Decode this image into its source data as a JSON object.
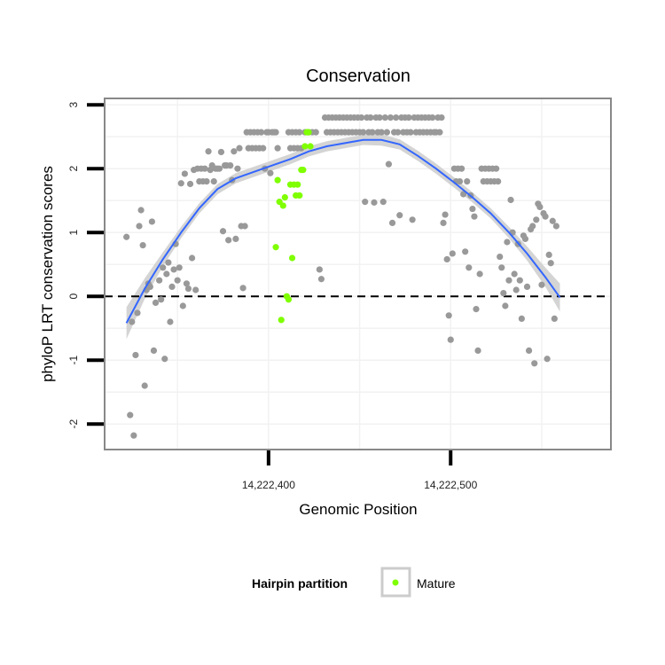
{
  "chart_data": {
    "type": "scatter",
    "title": "Conservation",
    "xlabel": "Genomic Position",
    "ylabel": "phyloP LRT conservation scores",
    "xlim": [
      14222310,
      14222588
    ],
    "ylim": [
      -2.4,
      3.1
    ],
    "x_ticks": [
      {
        "value": 14222400,
        "label": "14,222,400"
      },
      {
        "value": 14222500,
        "label": "14,222,500"
      }
    ],
    "y_ticks": [
      {
        "value": -2,
        "label": "-2"
      },
      {
        "value": -1,
        "label": "-1"
      },
      {
        "value": 0,
        "label": "0"
      },
      {
        "value": 1,
        "label": "1"
      },
      {
        "value": 2,
        "label": "2"
      },
      {
        "value": 3,
        "label": "3"
      }
    ],
    "reference_line": {
      "y": 0,
      "style": "dashed",
      "color": "#000000"
    },
    "grid": true,
    "legend": {
      "title": "Hairpin partition",
      "position": "bottom",
      "entries": [
        {
          "label": "Mature",
          "color": "#7fff00"
        }
      ]
    },
    "colors": {
      "other_points": "#999999",
      "mature_points": "#7fff00",
      "smooth_line": "#3366ff",
      "confidence_band": "#cccccc",
      "panel_border": "#888888",
      "grid": "#f2f2f2"
    },
    "series": [
      {
        "name": "",
        "color": "#999999",
        "points": [
          [
            14222322,
            0.93
          ],
          [
            14222324,
            -1.86
          ],
          [
            14222325,
            -0.4
          ],
          [
            14222326,
            -2.18
          ],
          [
            14222327,
            -0.92
          ],
          [
            14222328,
            -0.26
          ],
          [
            14222329,
            1.1
          ],
          [
            14222330,
            1.35
          ],
          [
            14222331,
            0.8
          ],
          [
            14222332,
            -1.4
          ],
          [
            14222333,
            0.1
          ],
          [
            14222334,
            0.2
          ],
          [
            14222335,
            0.15
          ],
          [
            14222336,
            1.17
          ],
          [
            14222337,
            -0.85
          ],
          [
            14222338,
            -0.1
          ],
          [
            14222340,
            0.25
          ],
          [
            14222341,
            -0.05
          ],
          [
            14222342,
            0.45
          ],
          [
            14222343,
            -0.98
          ],
          [
            14222344,
            0.35
          ],
          [
            14222345,
            0.53
          ],
          [
            14222346,
            -0.4
          ],
          [
            14222347,
            0.15
          ],
          [
            14222348,
            0.42
          ],
          [
            14222349,
            0.82
          ],
          [
            14222350,
            0.25
          ],
          [
            14222351,
            0.45
          ],
          [
            14222352,
            1.77
          ],
          [
            14222353,
            -0.15
          ],
          [
            14222354,
            1.92
          ],
          [
            14222355,
            0.2
          ],
          [
            14222356,
            0.12
          ],
          [
            14222357,
            1.76
          ],
          [
            14222358,
            0.6
          ],
          [
            14222359,
            1.98
          ],
          [
            14222360,
            0.1
          ],
          [
            14222361,
            2.0
          ],
          [
            14222362,
            1.8
          ],
          [
            14222363,
            2.0
          ],
          [
            14222364,
            1.8
          ],
          [
            14222365,
            2.0
          ],
          [
            14222366,
            1.8
          ],
          [
            14222367,
            2.27
          ],
          [
            14222368,
            1.98
          ],
          [
            14222369,
            2.05
          ],
          [
            14222370,
            1.8
          ],
          [
            14222371,
            2.0
          ],
          [
            14222372,
            2.0
          ],
          [
            14222373,
            2.0
          ],
          [
            14222374,
            2.26
          ],
          [
            14222375,
            1.02
          ],
          [
            14222376,
            2.05
          ],
          [
            14222377,
            2.05
          ],
          [
            14222378,
            0.88
          ],
          [
            14222379,
            2.05
          ],
          [
            14222380,
            1.82
          ],
          [
            14222381,
            2.27
          ],
          [
            14222382,
            0.9
          ],
          [
            14222383,
            2.0
          ],
          [
            14222384,
            2.32
          ],
          [
            14222385,
            1.1
          ],
          [
            14222386,
            0.13
          ],
          [
            14222387,
            1.1
          ],
          [
            14222388,
            2.57
          ],
          [
            14222389,
            2.32
          ],
          [
            14222390,
            2.57
          ],
          [
            14222391,
            2.32
          ],
          [
            14222392,
            2.57
          ],
          [
            14222393,
            2.32
          ],
          [
            14222394,
            2.57
          ],
          [
            14222395,
            2.32
          ],
          [
            14222396,
            2.57
          ],
          [
            14222397,
            2.32
          ],
          [
            14222398,
            2.0
          ],
          [
            14222399,
            2.57
          ],
          [
            14222400,
            2.57
          ],
          [
            14222401,
            1.93
          ],
          [
            14222402,
            2.57
          ],
          [
            14222403,
            2.57
          ],
          [
            14222404,
            2.57
          ],
          [
            14222405,
            2.32
          ],
          [
            14222411,
            2.57
          ],
          [
            14222412,
            2.32
          ],
          [
            14222413,
            2.57
          ],
          [
            14222414,
            2.32
          ],
          [
            14222415,
            2.57
          ],
          [
            14222416,
            2.32
          ],
          [
            14222417,
            2.57
          ],
          [
            14222418,
            2.32
          ],
          [
            14222420,
            2.57
          ],
          [
            14222422,
            2.57
          ],
          [
            14222424,
            2.57
          ],
          [
            14222426,
            2.57
          ],
          [
            14222428,
            0.42
          ],
          [
            14222429,
            0.27
          ],
          [
            14222431,
            2.8
          ],
          [
            14222432,
            2.57
          ],
          [
            14222433,
            2.8
          ],
          [
            14222434,
            2.57
          ],
          [
            14222435,
            2.8
          ],
          [
            14222436,
            2.57
          ],
          [
            14222437,
            2.8
          ],
          [
            14222438,
            2.57
          ],
          [
            14222439,
            2.8
          ],
          [
            14222440,
            2.57
          ],
          [
            14222441,
            2.8
          ],
          [
            14222442,
            2.57
          ],
          [
            14222443,
            2.8
          ],
          [
            14222444,
            2.57
          ],
          [
            14222445,
            2.8
          ],
          [
            14222446,
            2.57
          ],
          [
            14222447,
            2.8
          ],
          [
            14222448,
            2.57
          ],
          [
            14222449,
            2.8
          ],
          [
            14222450,
            2.57
          ],
          [
            14222451,
            2.8
          ],
          [
            14222452,
            2.57
          ],
          [
            14222453,
            1.48
          ],
          [
            14222454,
            2.8
          ],
          [
            14222455,
            2.57
          ],
          [
            14222456,
            2.8
          ],
          [
            14222457,
            2.57
          ],
          [
            14222458,
            1.47
          ],
          [
            14222459,
            2.8
          ],
          [
            14222460,
            2.57
          ],
          [
            14222461,
            2.8
          ],
          [
            14222462,
            2.57
          ],
          [
            14222463,
            1.48
          ],
          [
            14222464,
            2.8
          ],
          [
            14222465,
            2.57
          ],
          [
            14222466,
            2.07
          ],
          [
            14222467,
            2.8
          ],
          [
            14222468,
            1.15
          ],
          [
            14222469,
            2.57
          ],
          [
            14222470,
            2.8
          ],
          [
            14222471,
            2.57
          ],
          [
            14222472,
            1.27
          ],
          [
            14222473,
            2.8
          ],
          [
            14222474,
            2.57
          ],
          [
            14222475,
            2.8
          ],
          [
            14222476,
            2.57
          ],
          [
            14222477,
            2.8
          ],
          [
            14222478,
            2.57
          ],
          [
            14222479,
            1.2
          ],
          [
            14222480,
            2.8
          ],
          [
            14222481,
            2.57
          ],
          [
            14222482,
            2.8
          ],
          [
            14222483,
            2.57
          ],
          [
            14222484,
            2.8
          ],
          [
            14222485,
            2.57
          ],
          [
            14222486,
            2.8
          ],
          [
            14222487,
            2.57
          ],
          [
            14222488,
            2.8
          ],
          [
            14222489,
            2.57
          ],
          [
            14222490,
            2.8
          ],
          [
            14222491,
            2.57
          ],
          [
            14222492,
            2.57
          ],
          [
            14222493,
            2.8
          ],
          [
            14222494,
            2.57
          ],
          [
            14222495,
            2.8
          ],
          [
            14222496,
            1.15
          ],
          [
            14222497,
            1.28
          ],
          [
            14222498,
            0.58
          ],
          [
            14222499,
            -0.3
          ],
          [
            14222500,
            -0.68
          ],
          [
            14222501,
            0.67
          ],
          [
            14222502,
            2.0
          ],
          [
            14222503,
            1.8
          ],
          [
            14222504,
            2.0
          ],
          [
            14222505,
            1.8
          ],
          [
            14222506,
            2.0
          ],
          [
            14222507,
            1.6
          ],
          [
            14222508,
            0.7
          ],
          [
            14222509,
            1.8
          ],
          [
            14222510,
            0.45
          ],
          [
            14222511,
            1.58
          ],
          [
            14222512,
            1.37
          ],
          [
            14222513,
            1.25
          ],
          [
            14222514,
            -0.2
          ],
          [
            14222515,
            -0.85
          ],
          [
            14222516,
            0.35
          ],
          [
            14222517,
            2.0
          ],
          [
            14222518,
            1.8
          ],
          [
            14222519,
            2.0
          ],
          [
            14222520,
            1.8
          ],
          [
            14222521,
            2.0
          ],
          [
            14222522,
            1.8
          ],
          [
            14222523,
            2.0
          ],
          [
            14222524,
            1.8
          ],
          [
            14222525,
            2.0
          ],
          [
            14222526,
            1.8
          ],
          [
            14222527,
            0.62
          ],
          [
            14222528,
            0.45
          ],
          [
            14222529,
            0.05
          ],
          [
            14222530,
            -0.15
          ],
          [
            14222531,
            0.85
          ],
          [
            14222532,
            0.25
          ],
          [
            14222533,
            1.51
          ],
          [
            14222534,
            1.0
          ],
          [
            14222535,
            0.35
          ],
          [
            14222536,
            0.1
          ],
          [
            14222537,
            0.82
          ],
          [
            14222538,
            0.25
          ],
          [
            14222539,
            -0.35
          ],
          [
            14222540,
            0.95
          ],
          [
            14222541,
            0.9
          ],
          [
            14222542,
            0.15
          ],
          [
            14222543,
            -0.85
          ],
          [
            14222544,
            1.05
          ],
          [
            14222545,
            1.1
          ],
          [
            14222546,
            -1.05
          ],
          [
            14222547,
            1.2
          ],
          [
            14222548,
            1.45
          ],
          [
            14222549,
            1.4
          ],
          [
            14222550,
            0.18
          ],
          [
            14222551,
            1.3
          ],
          [
            14222552,
            1.25
          ],
          [
            14222553,
            -0.98
          ],
          [
            14222554,
            0.65
          ],
          [
            14222555,
            0.52
          ],
          [
            14222556,
            1.18
          ],
          [
            14222557,
            -0.35
          ],
          [
            14222558,
            1.1
          ]
        ]
      },
      {
        "name": "Mature",
        "color": "#7fff00",
        "points": [
          [
            14222404,
            0.77
          ],
          [
            14222405,
            1.82
          ],
          [
            14222406,
            1.48
          ],
          [
            14222407,
            -0.37
          ],
          [
            14222408,
            1.42
          ],
          [
            14222409,
            1.55
          ],
          [
            14222410,
            0.0
          ],
          [
            14222411,
            -0.05
          ],
          [
            14222412,
            1.75
          ],
          [
            14222413,
            0.6
          ],
          [
            14222414,
            1.75
          ],
          [
            14222415,
            1.58
          ],
          [
            14222416,
            1.75
          ],
          [
            14222417,
            1.58
          ],
          [
            14222418,
            1.98
          ],
          [
            14222419,
            1.98
          ],
          [
            14222420,
            2.35
          ],
          [
            14222421,
            2.57
          ],
          [
            14222422,
            2.57
          ],
          [
            14222423,
            2.35
          ]
        ]
      }
    ],
    "smooth": {
      "x": [
        14222322,
        14222332,
        14222342,
        14222352,
        14222362,
        14222372,
        14222382,
        14222392,
        14222402,
        14222412,
        14222422,
        14222432,
        14222442,
        14222452,
        14222462,
        14222472,
        14222482,
        14222492,
        14222502,
        14222512,
        14222522,
        14222532,
        14222542,
        14222552,
        14222560
      ],
      "y": [
        -0.42,
        0.12,
        0.58,
        1.0,
        1.38,
        1.68,
        1.85,
        1.95,
        2.05,
        2.15,
        2.27,
        2.35,
        2.4,
        2.45,
        2.45,
        2.38,
        2.2,
        2.0,
        1.78,
        1.55,
        1.3,
        1.0,
        0.67,
        0.3,
        -0.02
      ],
      "ci": [
        0.25,
        0.16,
        0.11,
        0.09,
        0.08,
        0.08,
        0.08,
        0.08,
        0.08,
        0.08,
        0.08,
        0.08,
        0.08,
        0.08,
        0.09,
        0.08,
        0.08,
        0.08,
        0.08,
        0.08,
        0.08,
        0.09,
        0.11,
        0.15,
        0.22
      ]
    }
  }
}
